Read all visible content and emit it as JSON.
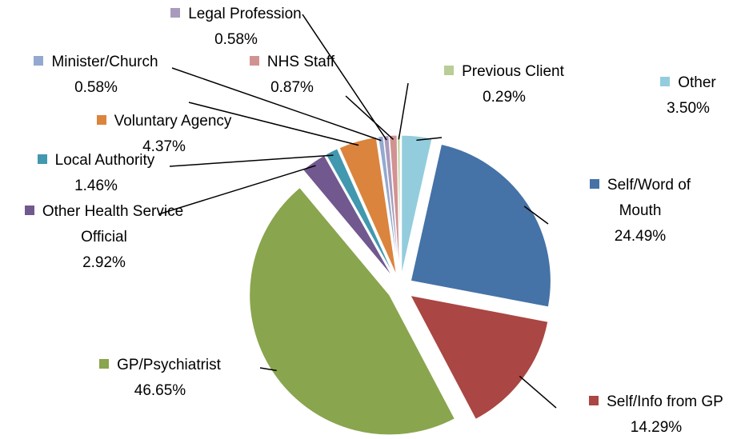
{
  "chart_data": {
    "type": "pie",
    "categories": [
      "Other",
      "Self/Word of Mouth",
      "Self/Info from GP",
      "GP/Psychiatrist",
      "Other Health Service Official",
      "Local Authority",
      "Voluntary Agency",
      "Minister/Church",
      "Legal Profession",
      "NHS Staff",
      "Previous Client"
    ],
    "values": [
      3.5,
      24.49,
      14.29,
      46.65,
      2.92,
      1.46,
      4.37,
      0.58,
      0.58,
      0.87,
      0.29
    ],
    "value_labels": [
      "3.50%",
      "24.49%",
      "14.29%",
      "46.65%",
      "2.92%",
      "1.46%",
      "4.37%",
      "0.58%",
      "0.58%",
      "0.87%",
      "0.29%"
    ],
    "colors": [
      "#93cddd",
      "#4572a7",
      "#aa4643",
      "#89a54e",
      "#71588f",
      "#4198af",
      "#db843d",
      "#93a9cf",
      "#a99bbd",
      "#d19392",
      "#b9cd96"
    ]
  }
}
